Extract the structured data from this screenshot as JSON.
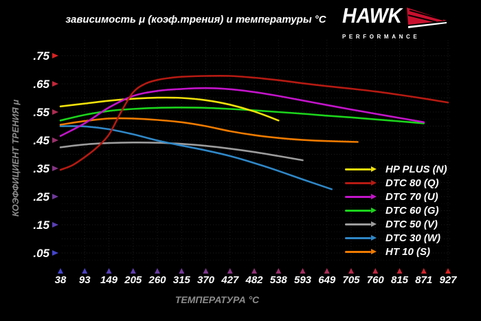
{
  "title": "зависимость μ (коэф.трения) и температуры °C",
  "logo": {
    "brand": "HAWK",
    "subtitle": "PERFORMANCE",
    "accent": "#c8102e"
  },
  "chart_data": {
    "type": "line",
    "title": "зависимость μ (коэф.трения) и температуры °C",
    "xlabel": "ТЕМПЕРАТУРА °C",
    "ylabel": "КОЭФФИЦИЕНТ ТРЕНИЯ μ",
    "x_ticks": [
      38,
      93,
      149,
      205,
      260,
      315,
      370,
      427,
      482,
      538,
      593,
      649,
      705,
      760,
      815,
      871,
      927
    ],
    "y_tick_labels": [
      ".75",
      ".65",
      ".55",
      ".45",
      ".35",
      ".25",
      ".15",
      ".05"
    ],
    "y_tick_values": [
      0.75,
      0.65,
      0.55,
      0.45,
      0.35,
      0.25,
      0.15,
      0.05
    ],
    "ylim": [
      0,
      0.78
    ],
    "grid": true,
    "legend_position": "inside-bottom-right",
    "axis_colors": {
      "hot": "#d92222",
      "cold": "#4444cc"
    },
    "label_color": "#8c8c8c",
    "tick_text_color": "#ffffff",
    "draw_order": [
      4,
      5,
      6,
      3,
      0,
      2,
      1
    ],
    "series": [
      {
        "name": "HP PLUS (N)",
        "color": "#f0e10b",
        "points": [
          [
            38,
            0.57
          ],
          [
            93,
            0.58
          ],
          [
            149,
            0.59
          ],
          [
            205,
            0.597
          ],
          [
            260,
            0.601
          ],
          [
            315,
            0.6
          ],
          [
            370,
            0.592
          ],
          [
            427,
            0.576
          ],
          [
            482,
            0.552
          ],
          [
            538,
            0.52
          ]
        ]
      },
      {
        "name": "DTC 80 (Q)",
        "color": "#b51a12",
        "points": [
          [
            38,
            0.345
          ],
          [
            66,
            0.362
          ],
          [
            93,
            0.39
          ],
          [
            121,
            0.424
          ],
          [
            149,
            0.47
          ],
          [
            177,
            0.55
          ],
          [
            205,
            0.62
          ],
          [
            232,
            0.65
          ],
          [
            260,
            0.664
          ],
          [
            288,
            0.671
          ],
          [
            315,
            0.675
          ],
          [
            370,
            0.678
          ],
          [
            427,
            0.678
          ],
          [
            482,
            0.672
          ],
          [
            538,
            0.663
          ],
          [
            593,
            0.652
          ],
          [
            649,
            0.642
          ],
          [
            705,
            0.633
          ],
          [
            760,
            0.623
          ],
          [
            815,
            0.611
          ],
          [
            871,
            0.598
          ],
          [
            927,
            0.584
          ]
        ]
      },
      {
        "name": "DTC 70 (U)",
        "color": "#c214c9",
        "points": [
          [
            38,
            0.465
          ],
          [
            93,
            0.51
          ],
          [
            149,
            0.566
          ],
          [
            205,
            0.607
          ],
          [
            260,
            0.625
          ],
          [
            315,
            0.632
          ],
          [
            370,
            0.635
          ],
          [
            427,
            0.631
          ],
          [
            482,
            0.621
          ],
          [
            538,
            0.607
          ],
          [
            593,
            0.591
          ],
          [
            649,
            0.575
          ],
          [
            705,
            0.559
          ],
          [
            760,
            0.544
          ],
          [
            815,
            0.529
          ],
          [
            871,
            0.514
          ]
        ]
      },
      {
        "name": "DTC 60 (G)",
        "color": "#1cd41c",
        "points": [
          [
            38,
            0.52
          ],
          [
            93,
            0.54
          ],
          [
            149,
            0.554
          ],
          [
            205,
            0.561
          ],
          [
            260,
            0.565
          ],
          [
            315,
            0.566
          ],
          [
            370,
            0.565
          ],
          [
            427,
            0.561
          ],
          [
            482,
            0.556
          ],
          [
            538,
            0.55
          ],
          [
            593,
            0.544
          ],
          [
            649,
            0.537
          ],
          [
            705,
            0.531
          ],
          [
            760,
            0.524
          ],
          [
            815,
            0.517
          ],
          [
            871,
            0.51
          ]
        ]
      },
      {
        "name": "DTC 50 (V)",
        "color": "#9c9c9c",
        "points": [
          [
            38,
            0.425
          ],
          [
            93,
            0.435
          ],
          [
            149,
            0.44
          ],
          [
            205,
            0.442
          ],
          [
            260,
            0.441
          ],
          [
            315,
            0.437
          ],
          [
            370,
            0.43
          ],
          [
            427,
            0.42
          ],
          [
            482,
            0.408
          ],
          [
            538,
            0.394
          ],
          [
            593,
            0.379
          ]
        ]
      },
      {
        "name": "DTC 30 (W)",
        "color": "#2f87c7",
        "points": [
          [
            38,
            0.5
          ],
          [
            93,
            0.499
          ],
          [
            149,
            0.489
          ],
          [
            205,
            0.471
          ],
          [
            260,
            0.449
          ],
          [
            315,
            0.431
          ],
          [
            370,
            0.414
          ],
          [
            427,
            0.394
          ],
          [
            482,
            0.369
          ],
          [
            538,
            0.341
          ],
          [
            593,
            0.311
          ],
          [
            660,
            0.276
          ]
        ]
      },
      {
        "name": "HT 10 (S)",
        "color": "#ee7a00",
        "points": [
          [
            38,
            0.505
          ],
          [
            93,
            0.518
          ],
          [
            149,
            0.527
          ],
          [
            205,
            0.527
          ],
          [
            260,
            0.522
          ],
          [
            315,
            0.514
          ],
          [
            370,
            0.5
          ],
          [
            427,
            0.482
          ],
          [
            482,
            0.468
          ],
          [
            538,
            0.458
          ],
          [
            593,
            0.451
          ],
          [
            649,
            0.447
          ],
          [
            720,
            0.444
          ]
        ]
      }
    ]
  }
}
